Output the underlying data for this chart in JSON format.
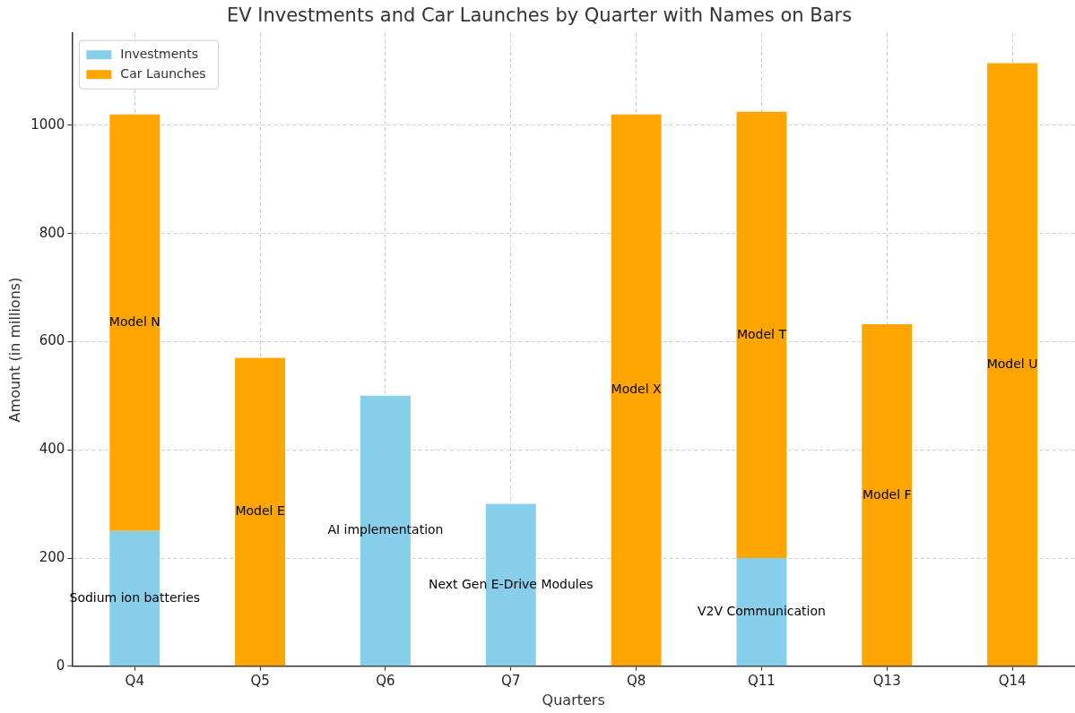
{
  "chart_data": {
    "type": "bar",
    "title": "EV Investments and Car Launches by Quarter with Names on Bars",
    "xlabel": "Quarters",
    "ylabel": "Amount (in millions)",
    "categories": [
      "Q4",
      "Q5",
      "Q6",
      "Q7",
      "Q8",
      "Q11",
      "Q13",
      "Q14"
    ],
    "stacked": true,
    "series": [
      {
        "name": "Investments",
        "color": "#87ceeb",
        "values": [
          250,
          null,
          500,
          300,
          null,
          200,
          null,
          null
        ],
        "value_labels": [
          "Sodium ion batteries",
          null,
          "AI implementation",
          "Next Gen E-Drive Modules",
          null,
          "V2V Communication",
          null,
          null
        ]
      },
      {
        "name": "Car Launches",
        "color": "#ffa500",
        "values": [
          770,
          570,
          null,
          null,
          1020,
          825,
          632,
          1115
        ],
        "value_labels": [
          "Model N",
          "Model E",
          null,
          null,
          "Model X",
          "Model T",
          "Model F",
          "Model U"
        ]
      }
    ],
    "ylim": [
      0,
      1170
    ],
    "yticks": [
      0,
      200,
      400,
      600,
      800,
      1000
    ],
    "grid": true,
    "legend": "top left"
  }
}
